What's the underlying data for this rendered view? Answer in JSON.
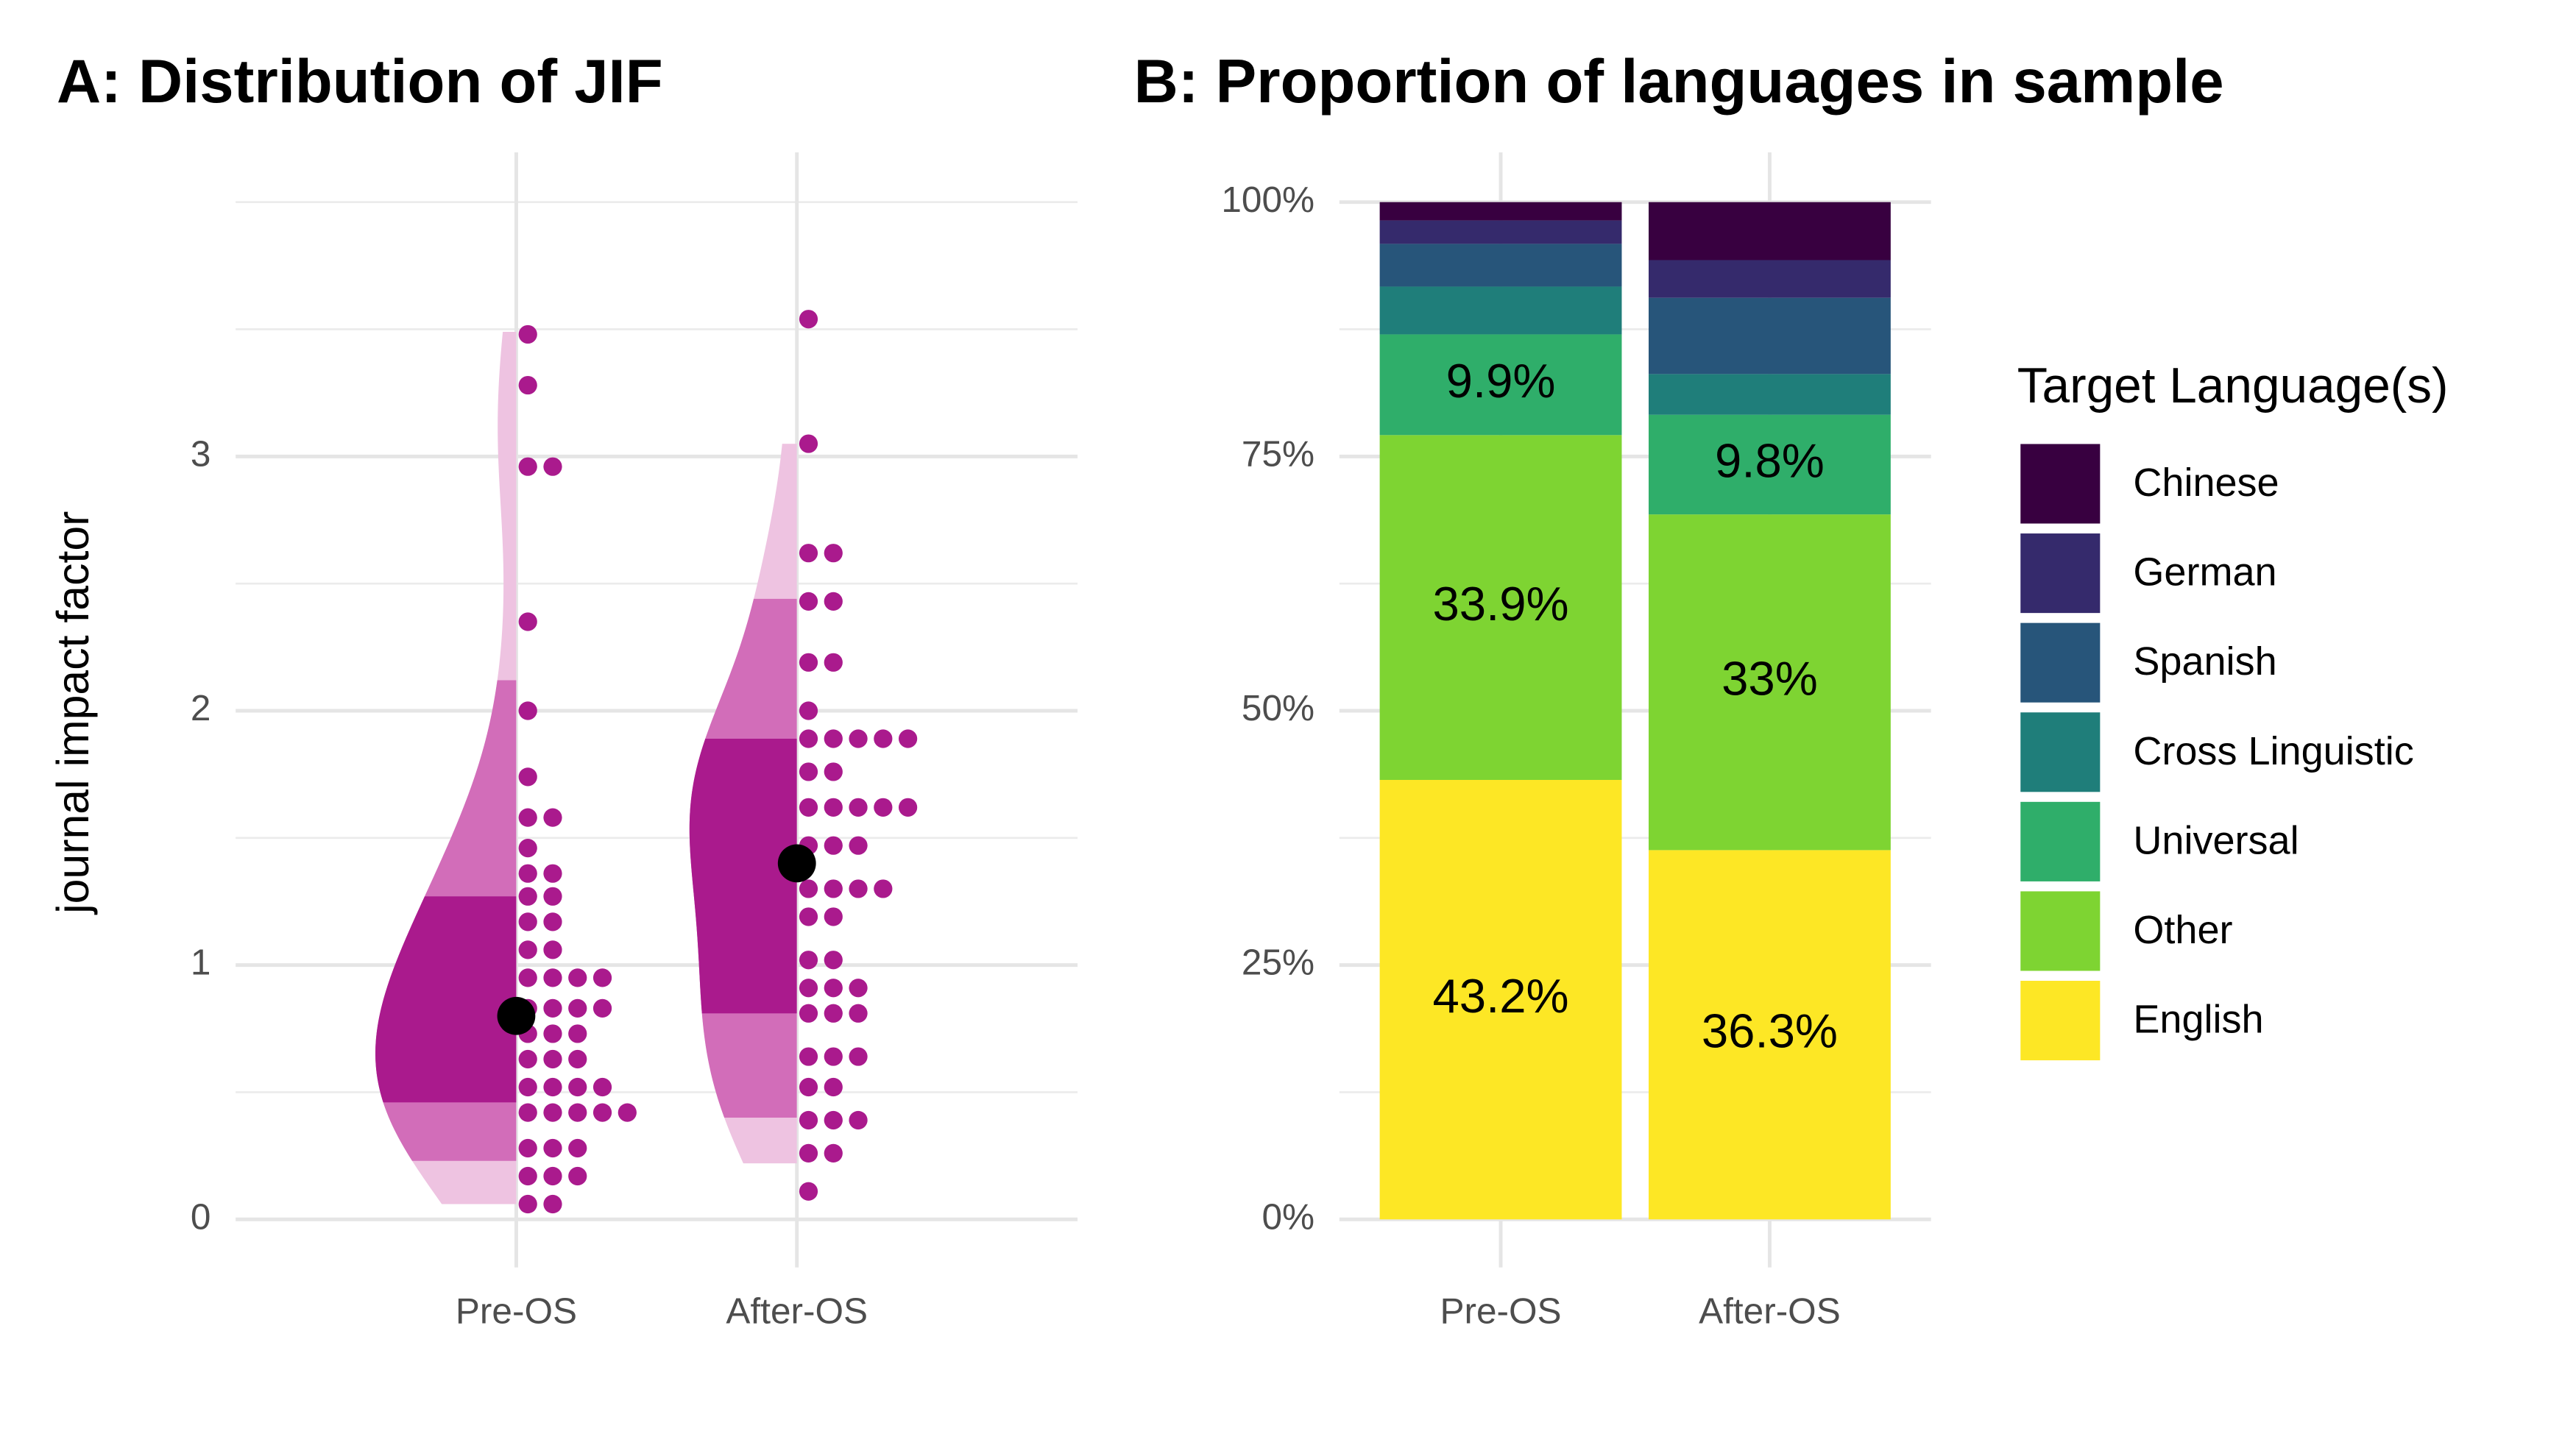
{
  "chart_data": [
    {
      "type": "halfeye",
      "title": "A: Distribution of JIF",
      "y_label": "journal impact factor",
      "categories": [
        "Pre-OS",
        "After-OS"
      ],
      "ylim": [
        0,
        4
      ],
      "yticks": [
        0,
        1,
        2,
        3
      ],
      "minor_yticks": [
        0.5,
        1.5,
        2.5,
        3.5,
        4
      ],
      "grid": true,
      "dot_color": "#AA1A8D",
      "median_color": "#000000",
      "interval_colors": [
        "#AA1A8D",
        "#D26DB9",
        "#EEC3E1"
      ],
      "groups": [
        {
          "values": [
            3.48,
            3.28,
            2.96,
            2.96,
            2.35,
            2.0,
            1.74,
            1.58,
            1.58,
            1.46,
            1.36,
            1.36,
            1.27,
            1.27,
            1.17,
            1.17,
            1.06,
            1.06,
            0.95,
            0.95,
            0.95,
            0.95,
            0.83,
            0.83,
            0.83,
            0.83,
            0.73,
            0.73,
            0.73,
            0.63,
            0.63,
            0.63,
            0.52,
            0.52,
            0.52,
            0.52,
            0.42,
            0.42,
            0.42,
            0.42,
            0.42,
            0.28,
            0.28,
            0.28,
            0.17,
            0.17,
            0.17,
            0.06,
            0.06
          ],
          "median": 0.8,
          "intervals": [
            [
              0.46,
              1.27
            ],
            [
              0.23,
              2.12
            ],
            [
              0.06,
              3.49
            ]
          ]
        },
        {
          "values": [
            3.54,
            3.05,
            2.62,
            2.62,
            2.43,
            2.43,
            2.19,
            2.19,
            2.0,
            1.89,
            1.89,
            1.89,
            1.89,
            1.89,
            1.76,
            1.76,
            1.62,
            1.62,
            1.62,
            1.62,
            1.62,
            1.47,
            1.47,
            1.47,
            1.3,
            1.3,
            1.3,
            1.3,
            1.19,
            1.19,
            1.02,
            1.02,
            0.91,
            0.91,
            0.91,
            0.81,
            0.81,
            0.81,
            0.64,
            0.64,
            0.64,
            0.52,
            0.52,
            0.39,
            0.39,
            0.39,
            0.26,
            0.26,
            0.11
          ],
          "median": 1.4,
          "intervals": [
            [
              0.81,
              1.89
            ],
            [
              0.4,
              2.44
            ],
            [
              0.22,
              3.05
            ]
          ]
        }
      ]
    },
    {
      "type": "bar",
      "stacked": true,
      "title": "B: Proportion of languages in sample",
      "categories": [
        "Pre-OS",
        "After-OS"
      ],
      "ylim": [
        0,
        100
      ],
      "yticks": [
        {
          "value": 0,
          "label": "0%"
        },
        {
          "value": 25,
          "label": "25%"
        },
        {
          "value": 50,
          "label": "50%"
        },
        {
          "value": 75,
          "label": "75%"
        },
        {
          "value": 100,
          "label": "100%"
        }
      ],
      "minor_yticks": [
        12.5,
        37.5,
        62.5,
        87.5
      ],
      "grid": true,
      "legend": "right",
      "legend_title": "Target Language(s)",
      "series": [
        {
          "name": "English",
          "color": "#FDE725",
          "values": [
            43.2,
            36.3
          ],
          "value_labels": [
            "43.2%",
            "36.3%"
          ]
        },
        {
          "name": "Other",
          "color": "#7ED432",
          "values": [
            33.9,
            33
          ],
          "value_labels": [
            "33.9%",
            "33%"
          ]
        },
        {
          "name": "Universal",
          "color": "#2FAE6A",
          "values": [
            9.9,
            9.8
          ],
          "value_labels": [
            "9.9%",
            "9.8%"
          ]
        },
        {
          "name": "Cross Linguistic",
          "color": "#1F7E7A",
          "values": [
            4.7,
            4.0
          ],
          "value_labels": [
            null,
            null
          ]
        },
        {
          "name": "Spanish",
          "color": "#27557A",
          "values": [
            4.2,
            7.5
          ],
          "value_labels": [
            null,
            null
          ]
        },
        {
          "name": "German",
          "color": "#352A6C",
          "values": [
            2.3,
            3.7
          ],
          "value_labels": [
            null,
            null
          ]
        },
        {
          "name": "Chinese",
          "color": "#380040",
          "values": [
            1.8,
            5.7
          ],
          "value_labels": [
            null,
            null
          ]
        }
      ]
    }
  ]
}
